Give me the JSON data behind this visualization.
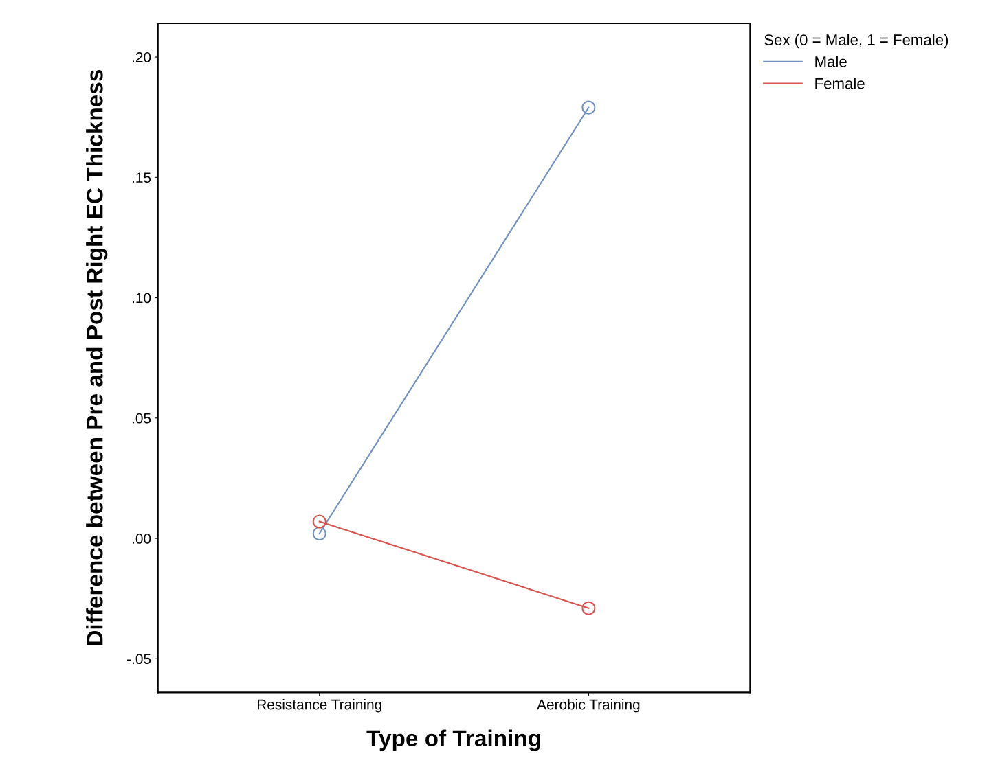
{
  "chart_data": {
    "type": "line",
    "xlabel": "Type of Training",
    "ylabel": "Difference between Pre and Post Right EC Thickness",
    "legend_title": "Sex (0 = Male, 1 = Female)",
    "categories": [
      "Resistance Training",
      "Aerobic Training"
    ],
    "series": [
      {
        "name": "Male",
        "color": "#6f8fbf",
        "values": [
          0.002,
          0.179
        ]
      },
      {
        "name": "Female",
        "color": "#d9534f",
        "values": [
          0.007,
          -0.029
        ]
      }
    ],
    "ylim": [
      -0.064,
      0.214
    ],
    "yticks": [
      {
        "value": -0.05,
        "label": "-.05"
      },
      {
        "value": 0.0,
        "label": ".00"
      },
      {
        "value": 0.05,
        "label": ".05"
      },
      {
        "value": 0.1,
        "label": ".10"
      },
      {
        "value": 0.15,
        "label": ".15"
      },
      {
        "value": 0.2,
        "label": ".20"
      }
    ],
    "marker": "circle",
    "line_style": "solid",
    "legend": "right",
    "grid": false
  }
}
